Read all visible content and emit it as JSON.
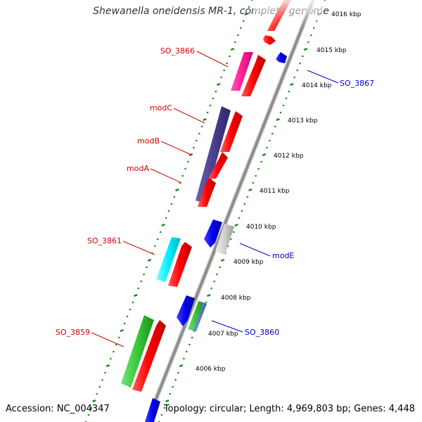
{
  "title": "Shewanella oneidensis MR-1, complete genome",
  "footer": {
    "accession": "Accession: NC_004347",
    "summary": "Topology: circular; Length: 4,969,803 bp; Genes: 4,448"
  },
  "colors": {
    "forward_label": "#d40000",
    "reverse_label": "#0000c8",
    "tick": "#138a13",
    "backbone": "#8c8c8c"
  },
  "scale_labels": [
    "4016 kbp",
    "4015 kbp",
    "4014 kbp",
    "4013 kbp",
    "4012 kbp",
    "4011 kbp",
    "4010 kbp",
    "4009 kbp",
    "4008 kbp",
    "4007 kbp",
    "4006 kbp"
  ],
  "gene_labels": [
    {
      "name": "SO_3866",
      "strand": "forward"
    },
    {
      "name": "modC",
      "strand": "forward"
    },
    {
      "name": "modB",
      "strand": "forward"
    },
    {
      "name": "modA",
      "strand": "forward"
    },
    {
      "name": "SO_3861",
      "strand": "forward"
    },
    {
      "name": "SO_3859",
      "strand": "forward"
    },
    {
      "name": "SO_3867",
      "strand": "reverse"
    },
    {
      "name": "modE",
      "strand": "reverse"
    },
    {
      "name": "SO_3860",
      "strand": "reverse"
    }
  ]
}
